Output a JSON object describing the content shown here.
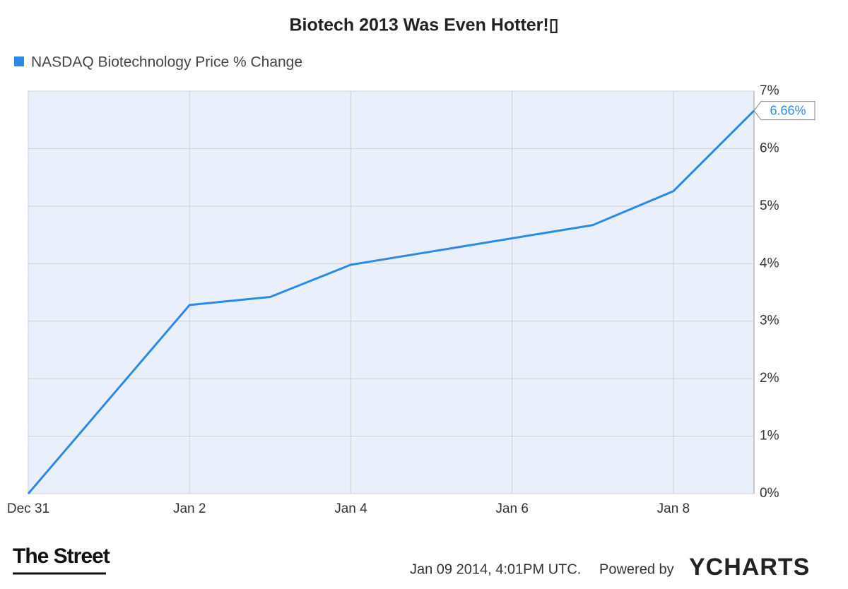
{
  "chart_data": {
    "type": "line",
    "title": "Biotech 2013 Was Even Hotter!▯",
    "x": [
      "Dec 31",
      "Jan 2",
      "Jan 3",
      "Jan 4",
      "Jan 7",
      "Jan 8",
      "Jan 9"
    ],
    "series": [
      {
        "name": "NASDAQ Biotechnology Price % Change",
        "color": "#2a8be6",
        "values": [
          0,
          3.28,
          3.42,
          3.98,
          4.67,
          5.26,
          6.66
        ],
        "last_value_label": "6.66%"
      }
    ],
    "xticks": [
      "Dec 31",
      "Jan 2",
      "Jan 4",
      "Jan 6",
      "Jan 8"
    ],
    "ylim": [
      0,
      7
    ],
    "yticks": [
      {
        "value": 0,
        "label": "0%"
      },
      {
        "value": 1,
        "label": "1%"
      },
      {
        "value": 2,
        "label": "2%"
      },
      {
        "value": 3,
        "label": "3%"
      },
      {
        "value": 4,
        "label": "4%"
      },
      {
        "value": 5,
        "label": "5%"
      },
      {
        "value": 6,
        "label": "6%"
      },
      {
        "value": 7,
        "label": "7%"
      }
    ],
    "grid": true,
    "y_axis_side": "right"
  },
  "footer": {
    "timestamp": "Jan 09 2014, 4:01PM UTC.",
    "powered_by": "Powered by",
    "brand": "YCHARTS"
  },
  "branding": {
    "logo": "The Street"
  }
}
